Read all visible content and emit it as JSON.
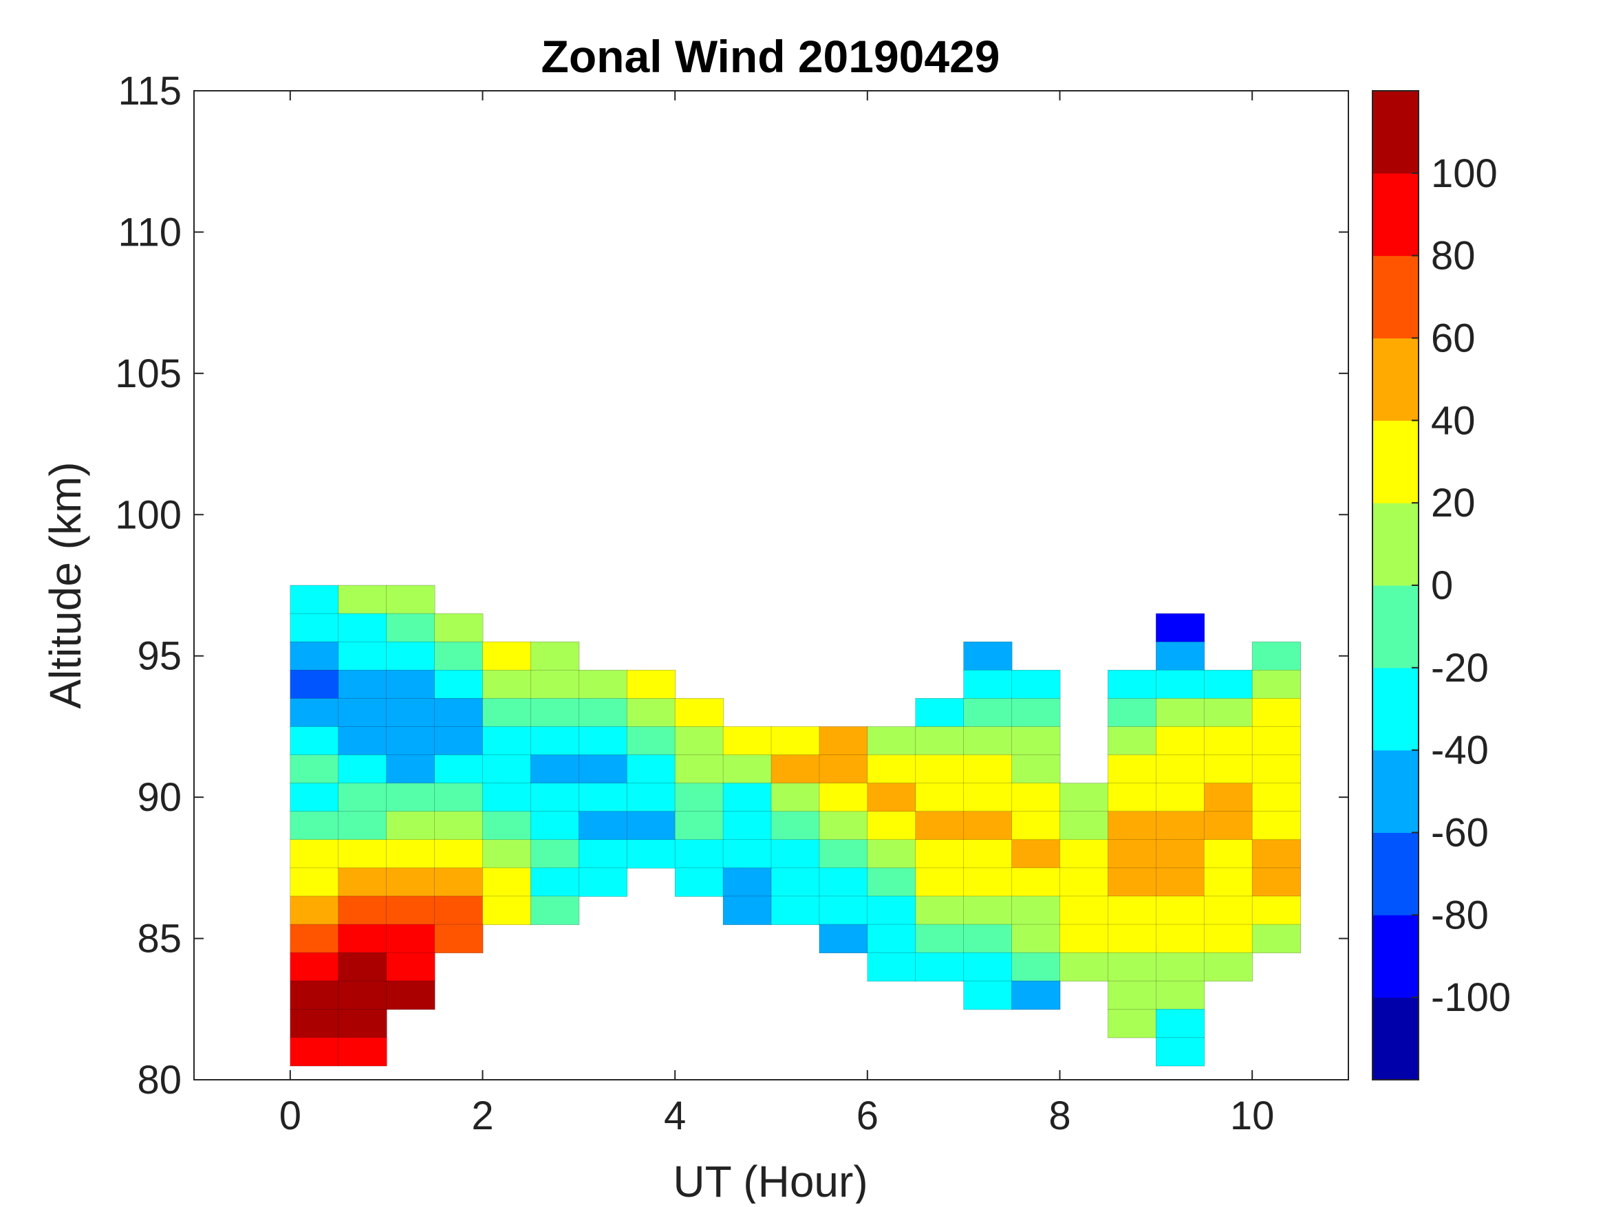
{
  "chart_data": {
    "type": "heatmap",
    "title": "Zonal Wind 20190429",
    "xlabel": "UT (Hour)",
    "ylabel": "Altitude (km)",
    "xlim": [
      -1,
      11
    ],
    "ylim": [
      80,
      115
    ],
    "xticks": [
      0,
      2,
      4,
      6,
      8,
      10
    ],
    "yticks": [
      80,
      85,
      90,
      95,
      100,
      105,
      110,
      115
    ],
    "x": [
      0.25,
      0.75,
      1.25,
      1.75,
      2.25,
      2.75,
      3.25,
      3.75,
      4.25,
      4.75,
      5.25,
      5.75,
      6.25,
      6.75,
      7.25,
      7.75,
      8.25,
      8.75,
      9.25,
      9.75,
      10.25
    ],
    "y": [
      97,
      96,
      95,
      94,
      93,
      92,
      91,
      90,
      89,
      88,
      87,
      86,
      85,
      84,
      83,
      82,
      81
    ],
    "values": [
      [
        -30,
        10,
        10,
        null,
        null,
        null,
        null,
        null,
        null,
        null,
        null,
        null,
        null,
        null,
        null,
        null,
        null,
        null,
        null,
        null,
        null
      ],
      [
        -30,
        -30,
        -10,
        10,
        null,
        null,
        null,
        null,
        null,
        null,
        null,
        null,
        null,
        null,
        null,
        null,
        null,
        null,
        -90,
        null,
        null
      ],
      [
        -50,
        -40,
        -30,
        -10,
        30,
        10,
        null,
        null,
        null,
        null,
        null,
        null,
        null,
        null,
        -50,
        null,
        null,
        null,
        -50,
        null,
        -10
      ],
      [
        -70,
        -50,
        -50,
        -30,
        10,
        10,
        10,
        30,
        null,
        null,
        null,
        null,
        null,
        null,
        -30,
        -30,
        null,
        -30,
        -30,
        -30,
        10
      ],
      [
        -50,
        -50,
        -50,
        -50,
        -10,
        -10,
        -10,
        10,
        30,
        null,
        null,
        null,
        null,
        -30,
        -10,
        -10,
        null,
        -10,
        10,
        10,
        30
      ],
      [
        -30,
        -50,
        -50,
        -50,
        -30,
        -30,
        -30,
        -10,
        10,
        30,
        30,
        50,
        10,
        10,
        10,
        10,
        null,
        10,
        30,
        30,
        30
      ],
      [
        -10,
        -30,
        -50,
        -30,
        -30,
        -50,
        -50,
        -30,
        10,
        10,
        50,
        50,
        30,
        30,
        30,
        10,
        null,
        30,
        30,
        30,
        30
      ],
      [
        -30,
        -10,
        -10,
        -10,
        -30,
        -30,
        -30,
        -30,
        -10,
        -30,
        10,
        30,
        50,
        30,
        30,
        30,
        10,
        30,
        30,
        50,
        30
      ],
      [
        -10,
        -10,
        10,
        10,
        -10,
        -30,
        -50,
        -50,
        -10,
        -30,
        -10,
        10,
        30,
        50,
        50,
        30,
        10,
        50,
        50,
        50,
        30
      ],
      [
        20,
        30,
        30,
        30,
        10,
        -10,
        -30,
        -30,
        -30,
        -30,
        -30,
        -10,
        10,
        30,
        30,
        50,
        30,
        50,
        50,
        30,
        50
      ],
      [
        30,
        50,
        50,
        50,
        30,
        -30,
        -30,
        null,
        -30,
        -50,
        -30,
        -30,
        -10,
        30,
        30,
        30,
        30,
        50,
        50,
        30,
        50
      ],
      [
        50,
        70,
        70,
        70,
        30,
        -10,
        null,
        null,
        null,
        -50,
        -30,
        -30,
        -30,
        10,
        10,
        10,
        30,
        30,
        30,
        30,
        30
      ],
      [
        70,
        90,
        90,
        70,
        null,
        null,
        null,
        null,
        null,
        null,
        null,
        -50,
        -30,
        -10,
        -10,
        10,
        30,
        30,
        30,
        30,
        10
      ],
      [
        90,
        110,
        90,
        null,
        null,
        null,
        null,
        null,
        null,
        null,
        null,
        null,
        -30,
        -30,
        -30,
        -10,
        10,
        10,
        10,
        10,
        null
      ],
      [
        110,
        110,
        100,
        null,
        null,
        null,
        null,
        null,
        null,
        null,
        null,
        null,
        null,
        null,
        -30,
        -50,
        null,
        10,
        10,
        null,
        null
      ],
      [
        110,
        100,
        null,
        null,
        null,
        null,
        null,
        null,
        null,
        null,
        null,
        null,
        null,
        null,
        null,
        null,
        null,
        10,
        -30,
        null,
        null
      ],
      [
        90,
        90,
        null,
        null,
        null,
        null,
        null,
        null,
        null,
        null,
        null,
        null,
        null,
        null,
        null,
        null,
        null,
        null,
        -30,
        null,
        null
      ]
    ],
    "colorbar": {
      "range": [
        -120,
        120
      ],
      "levels": [
        -120,
        -100,
        -80,
        -60,
        -40,
        -20,
        0,
        20,
        40,
        60,
        80,
        100,
        120
      ],
      "tick_labels": [
        "-100",
        "-80",
        "-60",
        "-40",
        "-20",
        "0",
        "20",
        "40",
        "60",
        "80",
        "100"
      ],
      "tick_values": [
        -100,
        -80,
        -60,
        -40,
        -20,
        0,
        20,
        40,
        60,
        80,
        100
      ],
      "colors": [
        "#0000aa",
        "#0000ff",
        "#0055ff",
        "#00aaff",
        "#00ffff",
        "#55ffaa",
        "#aaff55",
        "#ffff00",
        "#ffaa00",
        "#ff5500",
        "#ff0000",
        "#aa0000"
      ]
    },
    "grid": false,
    "legend": "colorbar-right"
  }
}
